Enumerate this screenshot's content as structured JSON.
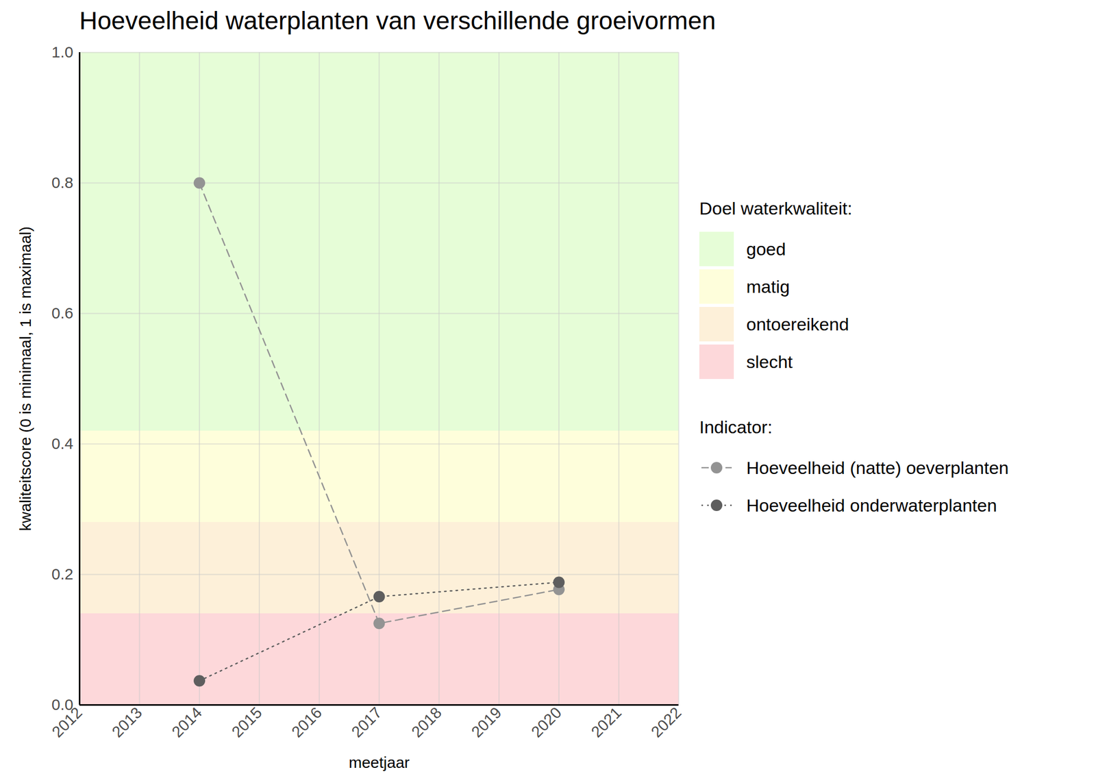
{
  "chart_data": {
    "type": "line",
    "title": "Hoeveelheid waterplanten van verschillende groeivormen",
    "x_label": "meetjaar",
    "y_label": "kwaliteitscore (0 is minimaal, 1 is maximaal)",
    "x": [
      2014,
      2017,
      2020
    ],
    "xlim": [
      2012,
      2022
    ],
    "xticks": [
      2012,
      2013,
      2014,
      2015,
      2016,
      2017,
      2018,
      2019,
      2020,
      2021,
      2022
    ],
    "ylim": [
      0,
      1
    ],
    "yticks": [
      {
        "value": 0,
        "label": "0.0"
      },
      0.2,
      0.4,
      0.6,
      0.8,
      {
        "value": 1,
        "label": "1.0"
      }
    ],
    "grid": true,
    "legend": "right",
    "legend_title": "Indicator:",
    "bands_title": "Doel waterkwaliteit:",
    "bands": [
      {
        "name": "goed",
        "from": 0.42,
        "to": 1.0,
        "color": "#e6fdd7"
      },
      {
        "name": "matig",
        "from": 0.28,
        "to": 0.42,
        "color": "#fefedb"
      },
      {
        "name": "ontoereikend",
        "from": 0.14,
        "to": 0.28,
        "color": "#fdf0d9"
      },
      {
        "name": "slecht",
        "from": 0.0,
        "to": 0.14,
        "color": "#fdd8da"
      }
    ],
    "series": [
      {
        "name": "Hoeveelheid (natte) oeverplanten",
        "color": "#939393",
        "line_style": "dashed",
        "marker": "circle",
        "values": [
          0.8,
          0.125,
          0.177
        ]
      },
      {
        "name": "Hoeveelheid onderwaterplanten",
        "color": "#5e5e5e",
        "line_style": "dotted",
        "marker": "circle",
        "values": [
          0.037,
          0.166,
          0.188
        ]
      }
    ]
  }
}
